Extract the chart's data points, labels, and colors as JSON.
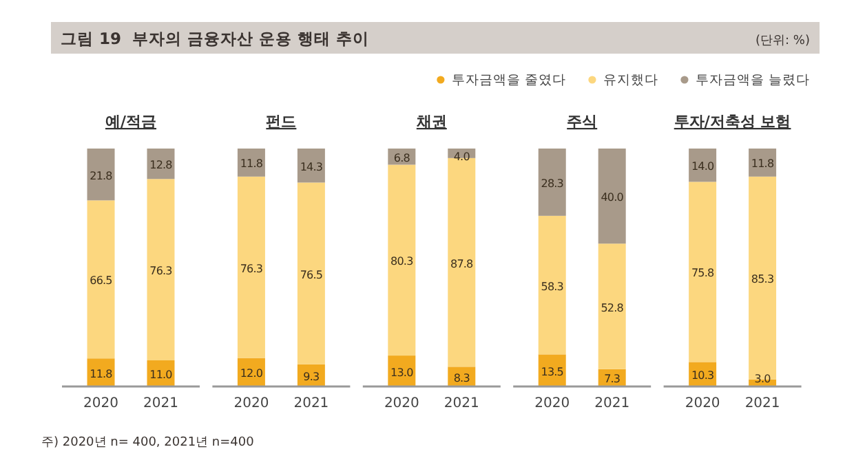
{
  "chart_data": [
    {
      "type": "bar",
      "title": "예/적금",
      "categories": [
        "2020",
        "2021"
      ],
      "stacked": true,
      "data_labels": true,
      "tick_labels": "x",
      "ylim": [
        0,
        100.1
      ],
      "legend": "top right",
      "annotations": [
        "그림 19  부자의 금융자산 운용 행태 추이",
        "(단위: %)",
        "주) 2020년 n= 400, 2021년 n=400"
      ],
      "series": [
        {
          "name": "투자금액을 줄였다",
          "color": "#f2aa1f",
          "values": [
            11.8,
            11.0
          ],
          "value_labels": [
            "11.8",
            "11.0"
          ]
        },
        {
          "name": "유지했다",
          "color": "#fcd77f",
          "values": [
            66.5,
            76.3
          ]
        },
        {
          "name": "투자금액을 늘렸다",
          "color": "#a89a8a",
          "values": [
            21.8,
            12.8
          ]
        }
      ]
    },
    {
      "type": "bar",
      "title": "펀드",
      "categories": [
        "2020",
        "2021"
      ],
      "stacked": true,
      "data_labels": true,
      "tick_labels": "x",
      "ylim": [
        0,
        100.1
      ],
      "series": [
        {
          "color": "#f2aa1f",
          "values": [
            12.0,
            9.3
          ],
          "value_labels": [
            "12.0",
            "9.3"
          ]
        },
        {
          "color": "#fcd77f",
          "values": [
            76.3,
            76.5
          ]
        },
        {
          "color": "#a89a8a",
          "values": [
            11.8,
            14.3
          ]
        }
      ]
    },
    {
      "type": "bar",
      "title": "채권",
      "categories": [
        "2020",
        "2021"
      ],
      "stacked": true,
      "data_labels": true,
      "tick_labels": "x",
      "ylim": [
        0,
        100.1
      ],
      "series": [
        {
          "color": "#f2aa1f",
          "values": [
            13.0,
            8.3
          ],
          "value_labels": [
            "13.0",
            "8.3"
          ]
        },
        {
          "color": "#fcd77f",
          "values": [
            80.3,
            87.8
          ]
        },
        {
          "color": "#a89a8a",
          "values": [
            6.8,
            4.0
          ],
          "value_labels": [
            "6.8",
            "4.0"
          ]
        }
      ]
    },
    {
      "type": "bar",
      "title": "주식",
      "categories": [
        "2020",
        "2021"
      ],
      "stacked": true,
      "data_labels": true,
      "tick_labels": "x",
      "ylim": [
        0,
        100.1
      ],
      "series": [
        {
          "color": "#f2aa1f",
          "values": [
            13.5,
            7.3
          ]
        },
        {
          "color": "#fcd77f",
          "values": [
            58.3,
            52.8
          ]
        },
        {
          "color": "#a89a8a",
          "values": [
            28.3,
            40.0
          ],
          "value_labels": [
            "28.3",
            "40.0"
          ]
        }
      ]
    },
    {
      "type": "bar",
      "title": "투자/저축성 보험",
      "categories": [
        "2020",
        "2021"
      ],
      "stacked": true,
      "data_labels": true,
      "tick_labels": "x",
      "ylim": [
        0,
        100.1
      ],
      "series": [
        {
          "color": "#f2aa1f",
          "values": [
            10.3,
            3.0
          ],
          "value_labels": [
            "10.3",
            "3.0"
          ]
        },
        {
          "color": "#fcd77f",
          "values": [
            75.8,
            85.3
          ]
        },
        {
          "color": "#a89a8a",
          "values": [
            14.0,
            11.8
          ],
          "value_labels": [
            "14.0",
            "11.8"
          ]
        }
      ]
    }
  ]
}
